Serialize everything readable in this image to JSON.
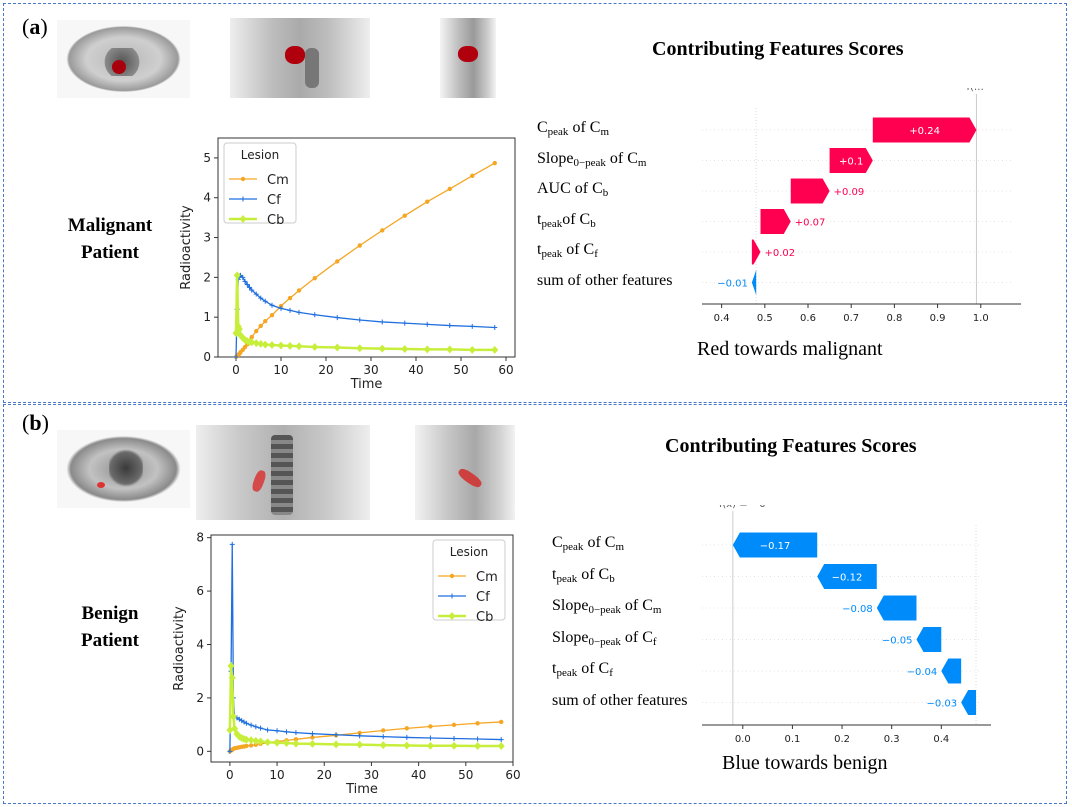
{
  "panels": [
    {
      "label_open": "(",
      "label_letter": "a",
      "label_close": ")",
      "patient_line1": "Malignant",
      "patient_line2": "Patient",
      "scores_title": "Contributing Features Scores",
      "caption": "Red towards malignant",
      "fx_label": "f(…",
      "fx_tail": "–"
    },
    {
      "label_open": "(",
      "label_letter": "b",
      "label_close": ")",
      "patient_line1": "Benign",
      "patient_line2": "Patient",
      "scores_title": "Contributing Features Scores",
      "caption": "Blue towards benign",
      "fx_label": "f(x) = −0",
      "fx_tail": ""
    }
  ],
  "colors": {
    "positive": "#ff0051",
    "negative": "#008bfb",
    "Cm": "#f5a623",
    "Cf": "#1f6fe0",
    "Cb": "#c8ee3c",
    "frame": "#4a78c8"
  },
  "chart_data": [
    {
      "type": "line",
      "panel": "a",
      "xlabel": "Time",
      "ylabel": "Radioactivity",
      "xlim": [
        -4,
        62
      ],
      "ylim": [
        0,
        5.5
      ],
      "xticks": [
        "0",
        "10",
        "20",
        "30",
        "40",
        "50",
        "60"
      ],
      "yticks": [
        "0",
        "1",
        "2",
        "3",
        "4",
        "5"
      ],
      "legend": {
        "title": "Lesion",
        "placement": "top-left"
      },
      "x": [
        0,
        0.25,
        0.5,
        0.75,
        1,
        1.5,
        2,
        2.5,
        3,
        3.5,
        4.5,
        5.5,
        6.5,
        8,
        10,
        12,
        14,
        17.5,
        22.5,
        27.5,
        32.5,
        37.5,
        42.5,
        47.5,
        52.5,
        57.5
      ],
      "series": [
        {
          "name": "Cm",
          "marker": "dot",
          "values": [
            0,
            0.02,
            0.05,
            0.08,
            0.12,
            0.18,
            0.25,
            0.32,
            0.4,
            0.5,
            0.65,
            0.78,
            0.9,
            1.05,
            1.28,
            1.48,
            1.67,
            1.98,
            2.4,
            2.8,
            3.18,
            3.55,
            3.9,
            4.22,
            4.55,
            4.87
          ]
        },
        {
          "name": "Cf",
          "marker": "plus",
          "values": [
            0,
            1.2,
            1.95,
            2.03,
            2.05,
            2.0,
            1.9,
            1.82,
            1.75,
            1.68,
            1.58,
            1.48,
            1.4,
            1.3,
            1.22,
            1.17,
            1.12,
            1.06,
            0.99,
            0.93,
            0.88,
            0.85,
            0.82,
            0.79,
            0.77,
            0.74
          ]
        },
        {
          "name": "Cb",
          "marker": "diamond",
          "values": [
            0.6,
            2.05,
            0.77,
            0.7,
            0.55,
            0.48,
            0.43,
            0.4,
            0.38,
            0.37,
            0.35,
            0.33,
            0.31,
            0.3,
            0.29,
            0.28,
            0.27,
            0.25,
            0.24,
            0.22,
            0.21,
            0.2,
            0.19,
            0.19,
            0.18,
            0.18
          ]
        }
      ]
    },
    {
      "type": "bar",
      "subtype": "waterfall",
      "panel": "a",
      "xlim": [
        0.38,
        1.07
      ],
      "xticks": [
        "0.4",
        "0.5",
        "0.6",
        "0.7",
        "0.8",
        "0.9",
        "1.0"
      ],
      "base_value": 0.48,
      "features": [
        {
          "base": "C",
          "sub": "peak",
          "mid": " of C",
          "sub2": "m",
          "value": 0.24,
          "value_label": "+0.24"
        },
        {
          "base": "Slope",
          "sub": "0−peak",
          "mid": " of C",
          "sub2": "m",
          "value": 0.1,
          "value_label": "+0.1"
        },
        {
          "base": "AUC of C",
          "sub": "b",
          "mid": "",
          "sub2": "",
          "value": 0.09,
          "value_label": "+0.09"
        },
        {
          "base": "t",
          "sub": "peak",
          "mid": "of C",
          "sub2": "b",
          "value": 0.07,
          "value_label": "+0.07"
        },
        {
          "base": "t",
          "sub": "peak",
          "mid": " of C",
          "sub2": "f",
          "value": 0.02,
          "value_label": "+0.02"
        },
        {
          "base": "sum of other features",
          "sub": "",
          "mid": "",
          "sub2": "",
          "value": -0.01,
          "value_label": "−0.01"
        }
      ]
    },
    {
      "type": "line",
      "panel": "b",
      "xlabel": "Time",
      "ylabel": "Radioactivity",
      "xlim": [
        -4,
        60
      ],
      "ylim": [
        -0.4,
        8.1
      ],
      "xticks": [
        "0",
        "10",
        "20",
        "30",
        "40",
        "50",
        "60"
      ],
      "yticks": [
        "0",
        "2",
        "4",
        "6",
        "8"
      ],
      "legend": {
        "title": "Lesion",
        "placement": "top-right"
      },
      "x": [
        0,
        0.25,
        0.5,
        0.75,
        1,
        1.5,
        2,
        2.5,
        3,
        3.5,
        4.5,
        5.5,
        6.5,
        8,
        10,
        12,
        14,
        17.5,
        22.5,
        27.5,
        32.5,
        37.5,
        42.5,
        47.5,
        52.5,
        57.5
      ],
      "series": [
        {
          "name": "Cm",
          "marker": "dot",
          "values": [
            0,
            0.03,
            0.06,
            0.09,
            0.11,
            0.13,
            0.15,
            0.17,
            0.18,
            0.2,
            0.22,
            0.25,
            0.28,
            0.32,
            0.37,
            0.41,
            0.45,
            0.52,
            0.6,
            0.69,
            0.78,
            0.86,
            0.93,
            0.99,
            1.05,
            1.1
          ]
        },
        {
          "name": "Cf",
          "marker": "plus",
          "values": [
            0,
            3.0,
            7.75,
            2.0,
            1.3,
            1.25,
            1.2,
            1.15,
            1.1,
            1.05,
            0.98,
            0.92,
            0.87,
            0.8,
            0.77,
            0.73,
            0.7,
            0.66,
            0.62,
            0.58,
            0.55,
            0.52,
            0.5,
            0.48,
            0.46,
            0.44
          ]
        },
        {
          "name": "Cb",
          "marker": "diamond",
          "values": [
            0.8,
            3.2,
            2.75,
            1.3,
            0.85,
            0.65,
            0.55,
            0.5,
            0.46,
            0.44,
            0.42,
            0.39,
            0.37,
            0.34,
            0.32,
            0.31,
            0.29,
            0.28,
            0.26,
            0.25,
            0.23,
            0.22,
            0.21,
            0.21,
            0.2,
            0.2
          ]
        }
      ]
    },
    {
      "type": "bar",
      "subtype": "waterfall",
      "panel": "b",
      "xlim": [
        -0.06,
        0.48
      ],
      "xticks": [
        "0.0",
        "0.1",
        "0.2",
        "0.3",
        "0.4"
      ],
      "base_value": 0.47,
      "features": [
        {
          "base": "C",
          "sub": "peak",
          "mid": " of C",
          "sub2": "m",
          "value": -0.17,
          "value_label": "−0.17"
        },
        {
          "base": "t",
          "sub": "peak",
          "mid": " of C",
          "sub2": "b",
          "value": -0.12,
          "value_label": "−0.12"
        },
        {
          "base": "Slope",
          "sub": "0−peak",
          "mid": " of C",
          "sub2": "m",
          "value": -0.08,
          "value_label": "−0.08"
        },
        {
          "base": "Slope",
          "sub": "0−peak",
          "mid": " of C",
          "sub2": "f",
          "value": -0.05,
          "value_label": "−0.05"
        },
        {
          "base": "t",
          "sub": "peak",
          "mid": " of C",
          "sub2": "f",
          "value": -0.04,
          "value_label": "−0.04"
        },
        {
          "base": "sum of other features",
          "sub": "",
          "mid": "",
          "sub2": "",
          "value": -0.03,
          "value_label": "−0.03"
        }
      ]
    }
  ]
}
